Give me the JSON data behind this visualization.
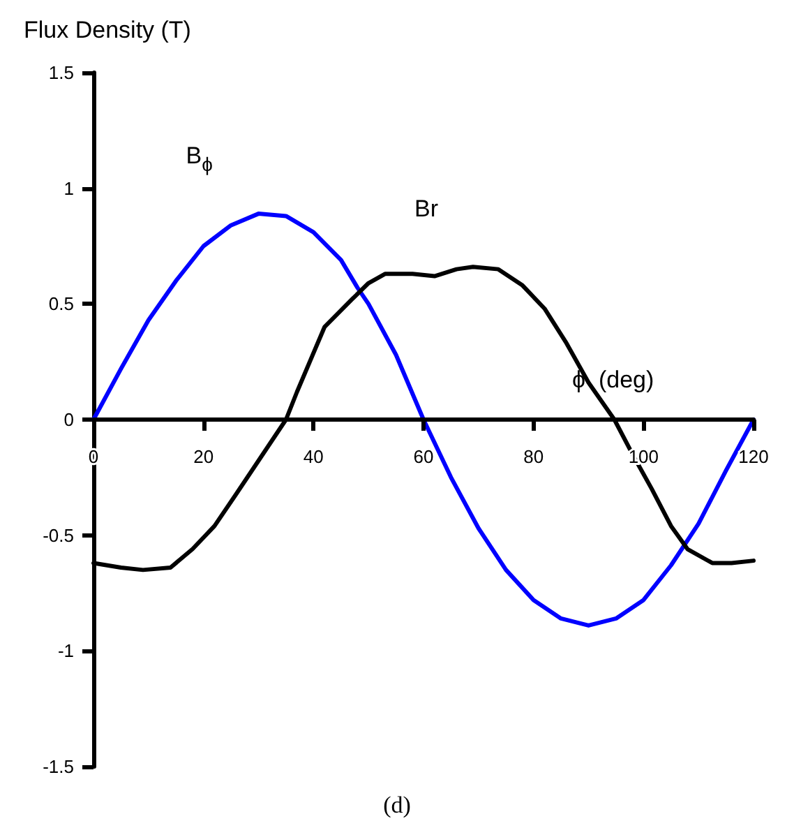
{
  "chart_data": {
    "type": "line",
    "ylabel": "Flux Density (T)",
    "xlabel": "ϕ  (deg)",
    "annotations": [
      "(d)"
    ],
    "xlim": [
      0,
      120
    ],
    "xticks": [
      0,
      20,
      40,
      60,
      80,
      100,
      120
    ],
    "ylim": [
      -1.5,
      1.5
    ],
    "yticks": [
      -1.5,
      -1,
      -0.5,
      0,
      0.5,
      1,
      1.5
    ],
    "legend": false,
    "marker": "none",
    "line_style": "solid",
    "series": [
      {
        "name": "B$_{ϕ}$",
        "color": "#0000ff",
        "x": [
          0,
          5,
          10,
          15,
          20,
          25,
          30,
          35,
          40,
          45,
          48,
          50,
          55,
          60,
          65,
          70,
          75,
          80,
          85,
          90,
          95,
          100,
          105,
          110,
          115,
          120
        ],
        "values": [
          0,
          0.22,
          0.43,
          0.6,
          0.75,
          0.84,
          0.89,
          0.88,
          0.81,
          0.69,
          0.57,
          0.5,
          0.28,
          0,
          -0.25,
          -0.47,
          -0.65,
          -0.78,
          -0.86,
          -0.89,
          -0.86,
          -0.78,
          -0.63,
          -0.45,
          -0.22,
          0
        ]
      },
      {
        "name": "Br",
        "color": "#000000",
        "x": [
          0,
          5,
          9,
          14,
          18,
          22,
          26,
          30.5,
          35,
          37,
          42,
          47,
          50,
          53,
          58,
          62,
          66,
          69,
          73.6,
          78,
          82,
          86,
          90,
          94.7,
          98,
          101.5,
          105,
          108,
          112.5,
          116,
          120
        ],
        "values": [
          -0.62,
          -0.64,
          -0.65,
          -0.64,
          -0.56,
          -0.46,
          -0.32,
          -0.16,
          0,
          0.12,
          0.4,
          0.52,
          0.59,
          0.63,
          0.63,
          0.62,
          0.65,
          0.66,
          0.65,
          0.58,
          0.48,
          0.33,
          0.16,
          0,
          -0.15,
          -0.3,
          -0.46,
          -0.56,
          -0.62,
          -0.62,
          -0.61
        ]
      }
    ]
  }
}
